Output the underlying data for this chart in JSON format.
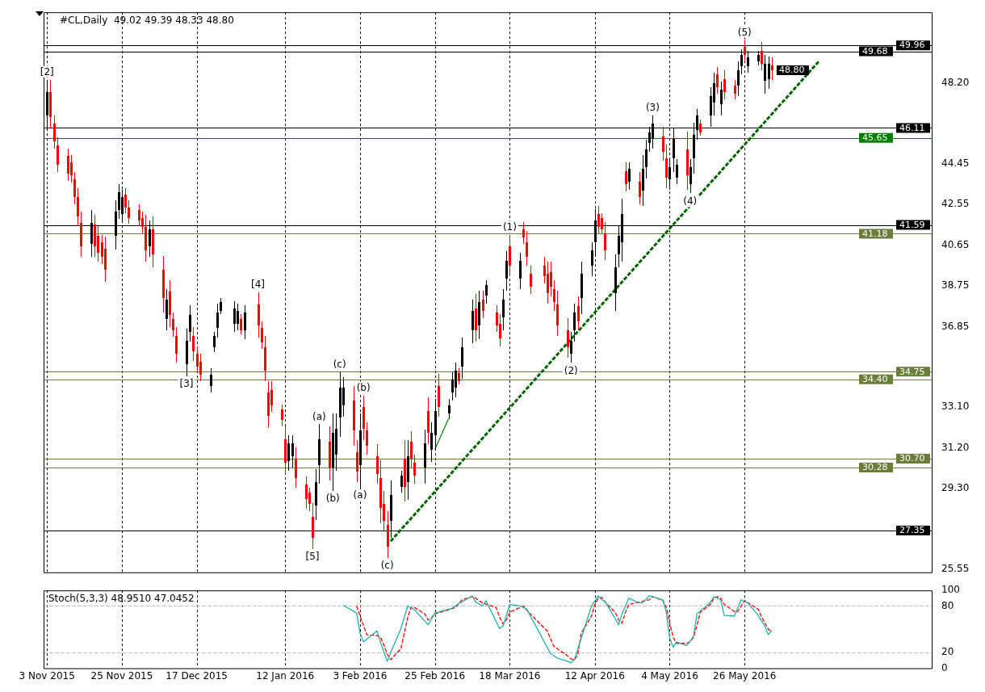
{
  "chart_data": [
    {
      "type": "candlestick",
      "title": "#CL,Daily  49.02 49.39 48.33 48.80",
      "x": [
        "2015-11-03",
        "2015-11-04",
        "2015-11-05",
        "2015-11-06",
        "2015-11-09",
        "2015-11-10",
        "2015-11-11",
        "2015-11-12",
        "2015-11-13",
        "2015-11-16",
        "2015-11-17",
        "2015-11-18",
        "2015-11-19",
        "2015-11-20",
        "2015-11-23",
        "2015-11-24",
        "2015-11-25",
        "2015-11-26",
        "2015-11-27",
        "2015-11-30",
        "2015-12-01",
        "2015-12-02",
        "2015-12-03",
        "2015-12-04",
        "2015-12-07",
        "2015-12-08",
        "2015-12-09",
        "2015-12-10",
        "2015-12-11",
        "2015-12-14",
        "2015-12-15",
        "2015-12-16",
        "2015-12-17",
        "2015-12-18",
        "2015-12-21",
        "2015-12-22",
        "2015-12-23",
        "2015-12-24",
        "2015-12-28",
        "2015-12-29",
        "2015-12-30",
        "2015-12-31",
        "2016-01-04",
        "2016-01-05",
        "2016-01-06",
        "2016-01-07",
        "2016-01-08",
        "2016-01-11",
        "2016-01-12",
        "2016-01-13",
        "2016-01-14",
        "2016-01-15",
        "2016-01-18",
        "2016-01-19",
        "2016-01-20",
        "2016-01-21",
        "2016-01-22",
        "2016-01-25",
        "2016-01-26",
        "2016-01-27",
        "2016-01-28",
        "2016-01-29",
        "2016-02-01",
        "2016-02-02",
        "2016-02-03",
        "2016-02-04",
        "2016-02-05",
        "2016-02-08",
        "2016-02-09",
        "2016-02-10",
        "2016-02-11",
        "2016-02-12",
        "2016-02-15",
        "2016-02-16",
        "2016-02-17",
        "2016-02-18",
        "2016-02-19",
        "2016-02-22",
        "2016-02-23",
        "2016-02-24",
        "2016-02-25",
        "2016-02-26",
        "2016-02-29",
        "2016-03-01",
        "2016-03-02",
        "2016-03-03",
        "2016-03-04",
        "2016-03-07",
        "2016-03-08",
        "2016-03-09",
        "2016-03-10",
        "2016-03-11",
        "2016-03-14",
        "2016-03-15",
        "2016-03-16",
        "2016-03-17",
        "2016-03-18",
        "2016-03-21",
        "2016-03-22",
        "2016-03-23",
        "2016-03-24",
        "2016-03-28",
        "2016-03-29",
        "2016-03-30",
        "2016-03-31",
        "2016-04-01",
        "2016-04-04",
        "2016-04-05",
        "2016-04-06",
        "2016-04-07",
        "2016-04-08",
        "2016-04-11",
        "2016-04-12",
        "2016-04-13",
        "2016-04-14",
        "2016-04-15",
        "2016-04-18",
        "2016-04-19",
        "2016-04-20",
        "2016-04-21",
        "2016-04-22",
        "2016-04-25",
        "2016-04-26",
        "2016-04-27",
        "2016-04-28",
        "2016-04-29",
        "2016-05-02",
        "2016-05-03",
        "2016-05-04",
        "2016-05-05",
        "2016-05-06",
        "2016-05-09",
        "2016-05-10",
        "2016-05-11",
        "2016-05-12",
        "2016-05-13",
        "2016-05-16",
        "2016-05-17",
        "2016-05-18",
        "2016-05-19",
        "2016-05-20",
        "2016-05-23",
        "2016-05-24",
        "2016-05-25",
        "2016-05-26",
        "2016-05-27",
        "2016-05-30",
        "2016-05-31",
        "2016-06-01",
        "2016-06-02",
        "2016-06-03"
      ],
      "ohlc": [
        [
          46.7,
          48.36,
          46.0,
          47.8
        ],
        [
          47.8,
          48.36,
          46.09,
          46.6
        ],
        [
          46.3,
          46.68,
          45.16,
          45.5
        ],
        [
          45.3,
          45.67,
          44.07,
          44.4
        ],
        [
          44.8,
          45.16,
          43.65,
          44.0
        ],
        [
          44.5,
          44.83,
          43.57,
          43.9
        ],
        [
          43.7,
          44.07,
          42.56,
          42.9
        ],
        [
          42.9,
          43.31,
          41.55,
          42.0
        ],
        [
          41.7,
          42.22,
          40.12,
          40.6
        ],
        [
          40.7,
          42.27,
          40.09,
          41.7
        ],
        [
          41.6,
          42.05,
          40.12,
          40.6
        ],
        [
          41.1,
          41.55,
          39.87,
          40.3
        ],
        [
          40.8,
          41.13,
          39.78,
          40.1
        ],
        [
          40.5,
          41.05,
          38.94,
          39.5
        ],
        [
          41.1,
          42.73,
          40.46,
          42.2
        ],
        [
          42.3,
          43.48,
          41.89,
          43.1
        ],
        [
          42.1,
          43.23,
          41.72,
          42.9
        ],
        [
          43.0,
          43.31,
          42.14,
          42.4
        ],
        [
          42.4,
          42.73,
          41.63,
          41.9
        ],
        [
          42.3,
          42.56,
          41.55,
          41.8
        ],
        [
          41.9,
          42.22,
          41.21,
          41.5
        ],
        [
          41.5,
          42.05,
          39.87,
          40.4
        ],
        [
          40.6,
          41.8,
          40.12,
          41.4
        ],
        [
          41.4,
          42.0,
          39.62,
          40.2
        ],
        [
          39.5,
          40.15,
          37.52,
          38.2
        ],
        [
          37.2,
          38.61,
          36.67,
          38.1
        ],
        [
          38.5,
          39.03,
          36.84,
          37.4
        ],
        [
          37.2,
          37.52,
          36.39,
          36.7
        ],
        [
          36.4,
          36.84,
          35.16,
          35.6
        ],
        [
          35.1,
          36.76,
          34.54,
          36.2
        ],
        [
          36.6,
          37.85,
          36.17,
          37.4
        ],
        [
          36.4,
          36.84,
          35.25,
          35.7
        ],
        [
          35.6,
          35.92,
          34.74,
          35.0
        ],
        [
          35.2,
          35.58,
          34.32,
          34.6
        ],
        [
          34.1,
          34.91,
          33.77,
          34.6
        ],
        [
          35.9,
          36.59,
          35.67,
          36.4
        ],
        [
          36.8,
          37.94,
          36.34,
          37.5
        ],
        [
          37.6,
          38.19,
          37.43,
          38.0
        ],
        [
          37.0,
          38.02,
          36.59,
          37.7
        ],
        [
          37.0,
          37.94,
          36.67,
          37.6
        ],
        [
          37.2,
          37.43,
          36.51,
          36.7
        ],
        [
          36.7,
          37.85,
          36.25,
          37.5
        ],
        [
          37.9,
          38.44,
          36.34,
          36.9
        ],
        [
          36.8,
          37.1,
          35.83,
          36.1
        ],
        [
          35.9,
          36.42,
          34.32,
          34.8
        ],
        [
          33.8,
          34.32,
          32.14,
          32.7
        ],
        [
          33.9,
          34.32,
          32.89,
          33.2
        ],
        [
          33.0,
          33.23,
          32.22,
          32.5
        ],
        [
          31.6,
          32.22,
          29.95,
          30.5
        ],
        [
          30.6,
          31.8,
          30.12,
          31.4
        ],
        [
          30.8,
          31.8,
          30.29,
          31.4
        ],
        [
          30.7,
          31.21,
          29.36,
          29.8
        ],
        [
          29.5,
          29.87,
          28.35,
          28.8
        ],
        [
          29.1,
          29.36,
          28.27,
          28.6
        ],
        [
          28.0,
          28.61,
          26.5,
          27.0
        ],
        [
          28.5,
          30.2,
          27.85,
          29.6
        ],
        [
          30.4,
          32.3,
          29.53,
          31.6
        ],
        [
          31.5,
          32.22,
          29.7,
          30.3
        ],
        [
          30.3,
          32.81,
          29.19,
          31.9
        ],
        [
          30.9,
          32.81,
          30.12,
          32.1
        ],
        [
          32.6,
          34.74,
          31.72,
          34.0
        ],
        [
          33.2,
          34.49,
          32.64,
          34.0
        ],
        [
          33.4,
          34.07,
          31.3,
          32.0
        ],
        [
          31.0,
          31.55,
          29.61,
          30.1
        ],
        [
          30.4,
          32.81,
          29.36,
          32.0
        ],
        [
          33.1,
          33.65,
          31.55,
          32.1
        ],
        [
          32.0,
          32.39,
          30.88,
          31.3
        ],
        [
          30.8,
          31.38,
          29.53,
          30.0
        ],
        [
          29.8,
          30.62,
          27.68,
          28.4
        ],
        [
          28.6,
          29.19,
          27.35,
          27.8
        ],
        [
          27.6,
          28.27,
          26.08,
          26.6
        ],
        [
          27.8,
          29.7,
          27.01,
          29.0
        ],
        [
          29.4,
          30.12,
          29.11,
          29.9
        ],
        [
          30.7,
          31.55,
          28.69,
          29.4
        ],
        [
          29.6,
          31.55,
          28.77,
          30.8
        ],
        [
          31.5,
          31.97,
          30.29,
          30.7
        ],
        [
          30.5,
          30.88,
          29.53,
          29.9
        ],
        [
          30.3,
          32.05,
          29.53,
          31.4
        ],
        [
          32.9,
          33.56,
          31.38,
          31.9
        ],
        [
          31.1,
          32.39,
          30.54,
          31.9
        ],
        [
          31.8,
          33.48,
          31.13,
          32.9
        ],
        [
          34.1,
          34.66,
          32.64,
          33.1
        ],
        [
          32.8,
          33.48,
          32.56,
          33.2
        ],
        [
          33.8,
          34.74,
          33.4,
          34.4
        ],
        [
          34.0,
          35.16,
          33.56,
          34.8
        ],
        [
          34.7,
          34.91,
          34.15,
          34.3
        ],
        [
          35.0,
          36.34,
          34.41,
          35.9
        ],
        [
          36.7,
          38.1,
          36.09,
          37.6
        ],
        [
          37.7,
          38.36,
          36.17,
          36.7
        ],
        [
          36.9,
          38.52,
          36.25,
          38.0
        ],
        [
          38.1,
          38.52,
          37.26,
          37.6
        ],
        [
          38.3,
          39.03,
          37.94,
          38.8
        ],
        [
          37.5,
          37.85,
          36.59,
          36.9
        ],
        [
          37.0,
          37.43,
          35.92,
          36.3
        ],
        [
          37.3,
          38.61,
          36.67,
          38.1
        ],
        [
          39.1,
          40.37,
          38.52,
          39.9
        ],
        [
          40.6,
          41.13,
          39.2,
          39.7
        ],
        [
          39.1,
          40.29,
          38.61,
          39.9
        ],
        [
          41.4,
          41.72,
          40.71,
          41.0
        ],
        [
          40.8,
          41.3,
          39.7,
          40.1
        ],
        [
          39.3,
          39.7,
          38.36,
          38.7
        ],
        [
          39.7,
          40.12,
          38.86,
          39.2
        ],
        [
          39.3,
          39.87,
          37.94,
          38.4
        ],
        [
          39.4,
          39.87,
          38.27,
          38.7
        ],
        [
          38.6,
          39.03,
          37.6,
          38.0
        ],
        [
          37.9,
          38.52,
          36.42,
          36.9
        ],
        [
          36.7,
          37.26,
          35.41,
          35.9
        ],
        [
          35.6,
          36.59,
          35.16,
          36.2
        ],
        [
          36.7,
          37.94,
          36.17,
          37.5
        ],
        [
          37.8,
          38.27,
          36.67,
          37.1
        ],
        [
          38.2,
          39.87,
          37.43,
          39.3
        ],
        [
          39.7,
          40.79,
          39.2,
          40.4
        ],
        [
          40.8,
          42.31,
          40.12,
          41.8
        ],
        [
          42.1,
          42.47,
          41.21,
          41.5
        ],
        [
          41.9,
          42.14,
          41.21,
          41.4
        ],
        [
          41.2,
          41.72,
          39.95,
          40.4
        ],
        [
          38.4,
          40.2,
          37.6,
          39.6
        ],
        [
          40.2,
          41.55,
          39.62,
          41.1
        ],
        [
          40.8,
          42.81,
          39.87,
          42.1
        ],
        [
          44.1,
          44.49,
          43.15,
          43.5
        ],
        [
          43.6,
          44.49,
          43.23,
          44.2
        ],
        [
          43.6,
          44.07,
          42.56,
          42.9
        ],
        [
          43.2,
          44.83,
          42.47,
          44.2
        ],
        [
          44.3,
          45.58,
          43.74,
          45.1
        ],
        [
          45.4,
          46.17,
          45.0,
          45.9
        ],
        [
          45.6,
          46.68,
          45.16,
          46.3
        ],
        [
          45.7,
          46.17,
          44.58,
          45.0
        ],
        [
          44.7,
          45.33,
          43.31,
          43.8
        ],
        [
          43.7,
          44.66,
          43.23,
          44.3
        ],
        [
          44.7,
          46.09,
          44.07,
          45.6
        ],
        [
          43.8,
          44.66,
          43.48,
          44.4
        ],
        [
          45.1,
          45.92,
          43.23,
          43.9
        ],
        [
          43.5,
          44.66,
          43.06,
          44.3
        ],
        [
          44.7,
          46.34,
          43.99,
          45.8
        ],
        [
          46.0,
          47.01,
          45.58,
          46.7
        ],
        [
          46.3,
          46.51,
          45.75,
          45.9
        ],
        [
          46.7,
          48.02,
          46.17,
          47.6
        ],
        [
          47.3,
          48.69,
          46.68,
          48.2
        ],
        [
          48.6,
          48.95,
          47.69,
          48.0
        ],
        [
          47.2,
          48.27,
          46.68,
          47.9
        ],
        [
          48.4,
          48.78,
          47.43,
          47.8
        ],
        [
          48.1,
          48.36,
          47.43,
          47.7
        ],
        [
          48.1,
          49.2,
          47.6,
          48.8
        ],
        [
          49.0,
          49.79,
          48.61,
          49.5
        ],
        [
          49.9,
          50.21,
          49.2,
          49.5
        ],
        [
          49.0,
          49.7,
          48.69,
          49.4
        ],
        [
          49.2,
          49.7,
          49.03,
          49.5
        ],
        [
          49.7,
          50.12,
          48.78,
          49.1
        ],
        [
          48.3,
          49.53,
          47.69,
          49.1
        ],
        [
          48.4,
          49.45,
          47.94,
          49.1
        ],
        [
          49.02,
          49.39,
          48.33,
          48.8
        ]
      ],
      "colors": [
        "#000000",
        "#ff0000",
        "#ff0000",
        "#ff0000",
        "#ff0000",
        "#ff0000",
        "#ff0000",
        "#ff0000",
        "#ff0000",
        "#000000",
        "#ff0000",
        "#ff0000",
        "#ff0000",
        "#ff0000",
        "#000000",
        "#000000",
        "#000000",
        "#ff0000",
        "#ff0000",
        "#ff0000",
        "#ff0000",
        "#ff0000",
        "#000000",
        "#ff0000",
        "#ff0000",
        "#000000",
        "#ff0000",
        "#ff0000",
        "#ff0000",
        "#000000",
        "#000000",
        "#ff0000",
        "#ff0000",
        "#ff0000",
        "#000000",
        "#000000",
        "#000000",
        "#000000",
        "#000000",
        "#000000",
        "#ff0000",
        "#000000",
        "#ff0000",
        "#ff0000",
        "#ff0000",
        "#ff0000",
        "#ff0000",
        "#ff0000",
        "#ff0000",
        "#000000",
        "#000000",
        "#ff0000",
        "#ff0000",
        "#ff0000",
        "#ff0000",
        "#000000",
        "#000000",
        "#ff0000",
        "#000000",
        "#000000",
        "#000000",
        "#000000",
        "#ff0000",
        "#ff0000",
        "#000000",
        "#ff0000",
        "#ff0000",
        "#ff0000",
        "#ff0000",
        "#ff0000",
        "#ff0000",
        "#000000",
        "#000000",
        "#ff0000",
        "#000000",
        "#ff0000",
        "#ff0000",
        "#000000",
        "#ff0000",
        "#000000",
        "#000000",
        "#ff0000",
        "#000000",
        "#000000",
        "#000000",
        "#ff0000",
        "#000000",
        "#000000",
        "#ff0000",
        "#000000",
        "#ff0000",
        "#000000",
        "#ff0000",
        "#ff0000",
        "#000000",
        "#000000",
        "#ff0000",
        "#000000",
        "#ff0000",
        "#ff0000",
        "#ff0000",
        "#ff0000",
        "#ff0000",
        "#ff0000",
        "#ff0000",
        "#ff0000",
        "#ff0000",
        "#000000",
        "#000000",
        "#ff0000",
        "#000000",
        "#000000",
        "#000000",
        "#ff0000",
        "#ff0000",
        "#ff0000",
        "#000000",
        "#000000",
        "#000000",
        "#ff0000",
        "#000000",
        "#ff0000",
        "#000000",
        "#000000",
        "#000000",
        "#000000",
        "#ff0000",
        "#ff0000",
        "#000000",
        "#000000",
        "#000000",
        "#ff0000",
        "#000000",
        "#000000",
        "#000000",
        "#ff0000",
        "#000000",
        "#000000",
        "#ff0000",
        "#000000",
        "#ff0000",
        "#ff0000",
        "#000000",
        "#000000",
        "#ff0000",
        "#000000",
        "#000000",
        "#ff0000",
        "#000000",
        "#000000",
        "#ff0000"
      ],
      "series": [
        {
          "type": "line",
          "color": "#006400",
          "line_style": "dashed",
          "x": [
            "2016-02-12",
            "2016-06-17"
          ],
          "values": [
            26.85,
            49.24
          ]
        },
        {
          "type": "line",
          "color": "#008000",
          "line_style": "solid",
          "x": [
            "2016-02-25",
            "2016-02-29"
          ],
          "values": [
            31.13,
            32.56
          ]
        }
      ],
      "xlim": [
        "2015-11-02",
        "2016-07-20"
      ],
      "xticks": [
        {
          "value": "2015-11-03",
          "label": null
        },
        {
          "value": "2015-11-25",
          "label": null
        },
        {
          "value": "2015-12-17",
          "label": null
        },
        {
          "value": "2016-01-12",
          "label": null
        },
        {
          "value": "2016-02-03",
          "label": null
        },
        {
          "value": "2016-02-25",
          "label": null
        },
        {
          "value": "2016-03-18",
          "label": null
        },
        {
          "value": "2016-04-12",
          "label": null
        },
        {
          "value": "2016-05-04",
          "label": null
        },
        {
          "value": "2016-05-26",
          "label": null
        }
      ],
      "ylim": [
        25.4,
        51.5
      ],
      "yticks": [
        25.55,
        {
          "value": 29.3,
          "label": "29.30"
        },
        {
          "value": 31.2,
          "label": "31.20"
        },
        {
          "value": 33.1,
          "label": "33.10"
        },
        36.85,
        38.75,
        40.65,
        42.55,
        44.45,
        {
          "value": 48.2,
          "label": "48.20"
        }
      ],
      "grid": "x",
      "tick_labels": "y",
      "ref_lines": [
        {
          "axis": "y",
          "value": 49.96,
          "label": "49.96",
          "color": "#000000"
        },
        {
          "axis": "y",
          "value": 49.68,
          "label": "49.68",
          "color": "#000000"
        },
        {
          "axis": "y",
          "value": 46.11,
          "label": "46.11",
          "color": "#000000"
        },
        {
          "axis": "y",
          "value": 45.65,
          "label": "45.65",
          "color": "#008000"
        },
        {
          "axis": "y",
          "value": 41.59,
          "label": "41.59",
          "color": "#000000"
        },
        {
          "axis": "y",
          "value": 41.18,
          "label": "41.18",
          "color": "#6b7d3a"
        },
        {
          "axis": "y",
          "value": 34.75,
          "label": "34.75",
          "color": "#6b7d3a"
        },
        {
          "axis": "y",
          "value": 34.4,
          "label": "34.40",
          "color": "#6b7d3a"
        },
        {
          "axis": "y",
          "value": 30.7,
          "label": "30.70",
          "color": "#6b7d3a"
        },
        {
          "axis": "y",
          "value": 30.28,
          "label": "30.28",
          "color": "#6b7d3a"
        },
        {
          "axis": "y",
          "value": 27.35,
          "label": "27.35",
          "color": "#000000"
        }
      ],
      "annotations": [
        {
          "text": "48.80",
          "x": "2016-06-03",
          "y": 48.8
        },
        {
          "text": "[2]",
          "x": "2015-11-03",
          "y": 48.36
        },
        {
          "text": "[3]",
          "x": "2015-12-14",
          "y": 34.54
        },
        {
          "text": "[4]",
          "x": "2016-01-04",
          "y": 38.44
        },
        {
          "text": "[5]",
          "x": "2016-01-20",
          "y": 26.5
        },
        {
          "text": "(a)",
          "x": "2016-01-22",
          "y": 32.3
        },
        {
          "text": "(b)",
          "x": "2016-01-26",
          "y": 29.19
        },
        {
          "text": "(c)",
          "x": "2016-01-28",
          "y": 34.74
        },
        {
          "text": "(a)",
          "x": "2016-02-03",
          "y": 29.36
        },
        {
          "text": "(b)",
          "x": "2016-02-04",
          "y": 33.65
        },
        {
          "text": "(c)",
          "x": "2016-02-11",
          "y": 26.08
        },
        {
          "text": "(1)",
          "x": "2016-03-18",
          "y": 41.13
        },
        {
          "text": "(2)",
          "x": "2016-04-05",
          "y": 35.16
        },
        {
          "text": "(3)",
          "x": "2016-04-29",
          "y": 46.68
        },
        {
          "text": "(4)",
          "x": "2016-05-10",
          "y": 43.06
        },
        {
          "text": "(5)",
          "x": "2016-05-26",
          "y": 50.21
        }
      ]
    },
    {
      "type": "line",
      "title": "Stoch(5,3,3) 48.9510 47.0452",
      "x": [
        "2016-01-29",
        "2016-02-01",
        "2016-02-02",
        "2016-02-03",
        "2016-02-04",
        "2016-02-05",
        "2016-02-08",
        "2016-02-09",
        "2016-02-10",
        "2016-02-11",
        "2016-02-12",
        "2016-02-15",
        "2016-02-16",
        "2016-02-17",
        "2016-02-18",
        "2016-02-19",
        "2016-02-22",
        "2016-02-23",
        "2016-02-24",
        "2016-02-25",
        "2016-02-26",
        "2016-02-29",
        "2016-03-01",
        "2016-03-02",
        "2016-03-03",
        "2016-03-04",
        "2016-03-07",
        "2016-03-08",
        "2016-03-09",
        "2016-03-10",
        "2016-03-11",
        "2016-03-14",
        "2016-03-15",
        "2016-03-16",
        "2016-03-17",
        "2016-03-18",
        "2016-03-21",
        "2016-03-22",
        "2016-03-23",
        "2016-03-24",
        "2016-03-28",
        "2016-03-29",
        "2016-03-30",
        "2016-03-31",
        "2016-04-01",
        "2016-04-04",
        "2016-04-05",
        "2016-04-06",
        "2016-04-07",
        "2016-04-08",
        "2016-04-11",
        "2016-04-12",
        "2016-04-13",
        "2016-04-14",
        "2016-04-15",
        "2016-04-18",
        "2016-04-19",
        "2016-04-20",
        "2016-04-21",
        "2016-04-22",
        "2016-04-25",
        "2016-04-26",
        "2016-04-27",
        "2016-04-28",
        "2016-04-29",
        "2016-05-02",
        "2016-05-03",
        "2016-05-04",
        "2016-05-05",
        "2016-05-06",
        "2016-05-09",
        "2016-05-10",
        "2016-05-11",
        "2016-05-12",
        "2016-05-13",
        "2016-05-16",
        "2016-05-17",
        "2016-05-18",
        "2016-05-19",
        "2016-05-20",
        "2016-05-23",
        "2016-05-24",
        "2016-05-25",
        "2016-05-26",
        "2016-05-27",
        "2016-05-30",
        "2016-05-31",
        "2016-06-01",
        "2016-06-02",
        "2016-06-03"
      ],
      "series": [
        {
          "color": "#20b2aa",
          "line_style": "solid",
          "values": [
            81,
            null,
            71,
            45,
            34,
            null,
            48,
            33,
            null,
            9,
            20,
            51,
            null,
            80,
            null,
            75,
            null,
            56,
            null,
            71,
            null,
            null,
            77,
            80,
            83,
            null,
            93,
            85,
            null,
            80,
            87,
            null,
            51,
            54,
            null,
            82,
            80,
            null,
            76,
            null,
            35,
            null,
            19,
            null,
            13,
            9,
            7,
            11,
            null,
            null,
            80,
            null,
            93,
            88,
            86,
            null,
            56,
            70,
            null,
            90,
            84,
            84,
            null,
            93,
            null,
            88,
            72,
            39,
            27,
            34,
            29,
            null,
            41,
            70,
            null,
            85,
            92,
            null,
            88,
            68,
            67,
            null,
            88,
            null,
            84,
            68,
            null,
            54,
            43,
            49
          ]
        },
        {
          "color": "#ff0000",
          "line_style": "dashed",
          "values": [
            null,
            null,
            80,
            null,
            55,
            43,
            42,
            40,
            30,
            18,
            11,
            25,
            45,
            65,
            78,
            78,
            70,
            62,
            65,
            70,
            null,
            75,
            null,
            78,
            null,
            88,
            92,
            90,
            null,
            84,
            null,
            78,
            66,
            57,
            62,
            72,
            78,
            80,
            null,
            70,
            null,
            48,
            null,
            28,
            null,
            16,
            12,
            11,
            18,
            45,
            67,
            82,
            90,
            91,
            85,
            72,
            62,
            58,
            72,
            82,
            85,
            86,
            null,
            88,
            92,
            87,
            78,
            58,
            40,
            32,
            32,
            34,
            40,
            55,
            72,
            82,
            90,
            92,
            90,
            82,
            73,
            73,
            80,
            87,
            84,
            76,
            66,
            58,
            50,
            47
          ]
        }
      ],
      "xlim": [
        "2015-11-02",
        "2016-07-20"
      ],
      "xticks": [
        {
          "value": "2015-11-03",
          "label": "3 Nov 2015"
        },
        {
          "value": "2015-11-25",
          "label": "25 Nov 2015"
        },
        {
          "value": "2015-12-17",
          "label": "17 Dec 2015"
        },
        {
          "value": "2016-01-12",
          "label": "12 Jan 2016"
        },
        {
          "value": "2016-02-03",
          "label": "3 Feb 2016"
        },
        {
          "value": "2016-02-25",
          "label": "25 Feb 2016"
        },
        {
          "value": "2016-03-18",
          "label": "18 Mar 2016"
        },
        {
          "value": "2016-04-12",
          "label": "12 Apr 2016"
        },
        {
          "value": "2016-05-04",
          "label": "4 May 2016"
        },
        {
          "value": "2016-05-26",
          "label": "26 May 2016"
        }
      ],
      "ylim": [
        0,
        100
      ],
      "yticks": [
        0,
        20,
        80,
        100
      ],
      "grid": "x",
      "ref_lines": [
        {
          "axis": "y",
          "value": 80,
          "color": "#c0c0c0",
          "line_style": "dashed"
        },
        {
          "axis": "y",
          "value": 20,
          "color": "#c0c0c0",
          "line_style": "dashed"
        }
      ]
    }
  ]
}
